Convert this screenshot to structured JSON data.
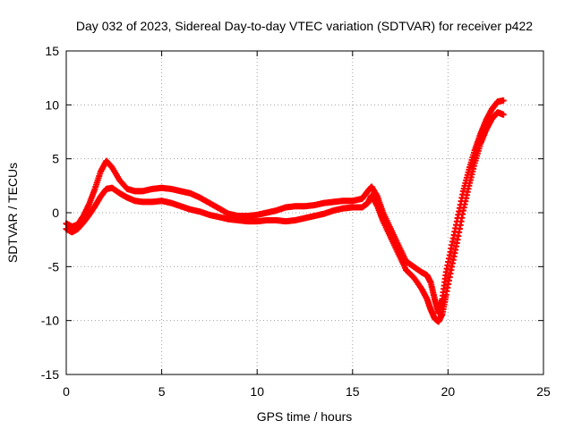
{
  "chart_data": {
    "type": "scatter",
    "title": "Day 032 of 2023, Sidereal Day-to-day VTEC variation (SDTVAR) for receiver p422",
    "xlabel": "GPS time / hours",
    "ylabel": "SDTVAR / TECUs",
    "xlim": [
      0,
      25
    ],
    "ylim": [
      -15,
      15
    ],
    "xticks": [
      "0",
      "5",
      "10",
      "15",
      "20",
      "25"
    ],
    "yticks": [
      "-15",
      "-10",
      "-5",
      "0",
      "5",
      "10",
      "15"
    ],
    "grid": true,
    "marker": "+",
    "color": "#ff0000",
    "series": [
      {
        "name": "track-upper",
        "points": [
          [
            0.0,
            -1.0
          ],
          [
            0.3,
            -1.3
          ],
          [
            0.6,
            -1.1
          ],
          [
            0.9,
            -0.3
          ],
          [
            1.2,
            0.8
          ],
          [
            1.5,
            2.2
          ],
          [
            1.8,
            3.8
          ],
          [
            2.1,
            4.8
          ],
          [
            2.4,
            4.2
          ],
          [
            2.8,
            3.0
          ],
          [
            3.2,
            2.2
          ],
          [
            3.6,
            2.0
          ],
          [
            4.0,
            2.0
          ],
          [
            4.5,
            2.2
          ],
          [
            5.0,
            2.3
          ],
          [
            5.5,
            2.2
          ],
          [
            6.0,
            2.0
          ],
          [
            6.5,
            1.8
          ],
          [
            7.0,
            1.4
          ],
          [
            7.5,
            0.9
          ],
          [
            8.0,
            0.4
          ],
          [
            8.5,
            -0.1
          ],
          [
            9.0,
            -0.3
          ],
          [
            9.5,
            -0.3
          ],
          [
            10.0,
            -0.2
          ],
          [
            10.5,
            0.0
          ],
          [
            11.0,
            0.2
          ],
          [
            11.5,
            0.5
          ],
          [
            12.0,
            0.6
          ],
          [
            12.5,
            0.6
          ],
          [
            13.0,
            0.7
          ],
          [
            13.5,
            0.9
          ],
          [
            14.0,
            1.0
          ],
          [
            14.5,
            1.1
          ],
          [
            15.0,
            1.1
          ],
          [
            15.5,
            1.3
          ],
          [
            15.8,
            2.0
          ],
          [
            16.0,
            2.4
          ],
          [
            16.3,
            1.5
          ],
          [
            16.6,
            0.0
          ],
          [
            17.0,
            -1.5
          ],
          [
            17.4,
            -3.0
          ],
          [
            17.8,
            -4.5
          ],
          [
            18.2,
            -5.0
          ],
          [
            18.6,
            -5.5
          ],
          [
            18.9,
            -5.8
          ],
          [
            19.1,
            -6.5
          ],
          [
            19.3,
            -8.0
          ],
          [
            19.5,
            -9.3
          ],
          [
            19.7,
            -8.0
          ],
          [
            19.9,
            -5.5
          ],
          [
            20.2,
            -3.0
          ],
          [
            20.5,
            -0.5
          ],
          [
            20.8,
            2.0
          ],
          [
            21.1,
            4.0
          ],
          [
            21.4,
            5.8
          ],
          [
            21.7,
            7.3
          ],
          [
            22.0,
            8.6
          ],
          [
            22.3,
            9.6
          ],
          [
            22.6,
            10.3
          ],
          [
            22.9,
            10.4
          ]
        ]
      },
      {
        "name": "track-lower",
        "points": [
          [
            0.0,
            -1.5
          ],
          [
            0.3,
            -1.8
          ],
          [
            0.6,
            -1.5
          ],
          [
            0.9,
            -0.9
          ],
          [
            1.2,
            -0.2
          ],
          [
            1.5,
            0.6
          ],
          [
            1.8,
            1.5
          ],
          [
            2.1,
            2.2
          ],
          [
            2.4,
            2.3
          ],
          [
            2.8,
            1.8
          ],
          [
            3.2,
            1.4
          ],
          [
            3.6,
            1.1
          ],
          [
            4.0,
            1.0
          ],
          [
            4.5,
            1.0
          ],
          [
            5.0,
            1.1
          ],
          [
            5.5,
            0.9
          ],
          [
            6.0,
            0.6
          ],
          [
            6.5,
            0.3
          ],
          [
            7.0,
            0.1
          ],
          [
            7.5,
            -0.2
          ],
          [
            8.0,
            -0.4
          ],
          [
            8.5,
            -0.6
          ],
          [
            9.0,
            -0.7
          ],
          [
            9.5,
            -0.8
          ],
          [
            10.0,
            -0.8
          ],
          [
            10.5,
            -0.7
          ],
          [
            11.0,
            -0.7
          ],
          [
            11.5,
            -0.8
          ],
          [
            12.0,
            -0.7
          ],
          [
            12.5,
            -0.5
          ],
          [
            13.0,
            -0.3
          ],
          [
            13.5,
            -0.1
          ],
          [
            14.0,
            0.2
          ],
          [
            14.5,
            0.4
          ],
          [
            15.0,
            0.5
          ],
          [
            15.5,
            0.5
          ],
          [
            15.8,
            0.9
          ],
          [
            16.0,
            1.6
          ],
          [
            16.3,
            0.6
          ],
          [
            16.6,
            -0.8
          ],
          [
            17.0,
            -2.3
          ],
          [
            17.4,
            -3.8
          ],
          [
            17.8,
            -5.3
          ],
          [
            18.2,
            -6.0
          ],
          [
            18.6,
            -7.0
          ],
          [
            18.9,
            -8.0
          ],
          [
            19.1,
            -9.0
          ],
          [
            19.3,
            -9.8
          ],
          [
            19.5,
            -10.1
          ],
          [
            19.7,
            -9.4
          ],
          [
            19.9,
            -7.6
          ],
          [
            20.2,
            -5.0
          ],
          [
            20.5,
            -2.5
          ],
          [
            20.8,
            0.2
          ],
          [
            21.1,
            2.5
          ],
          [
            21.4,
            4.6
          ],
          [
            21.7,
            6.4
          ],
          [
            22.0,
            7.7
          ],
          [
            22.3,
            8.7
          ],
          [
            22.6,
            9.3
          ],
          [
            22.9,
            9.1
          ]
        ]
      }
    ]
  }
}
